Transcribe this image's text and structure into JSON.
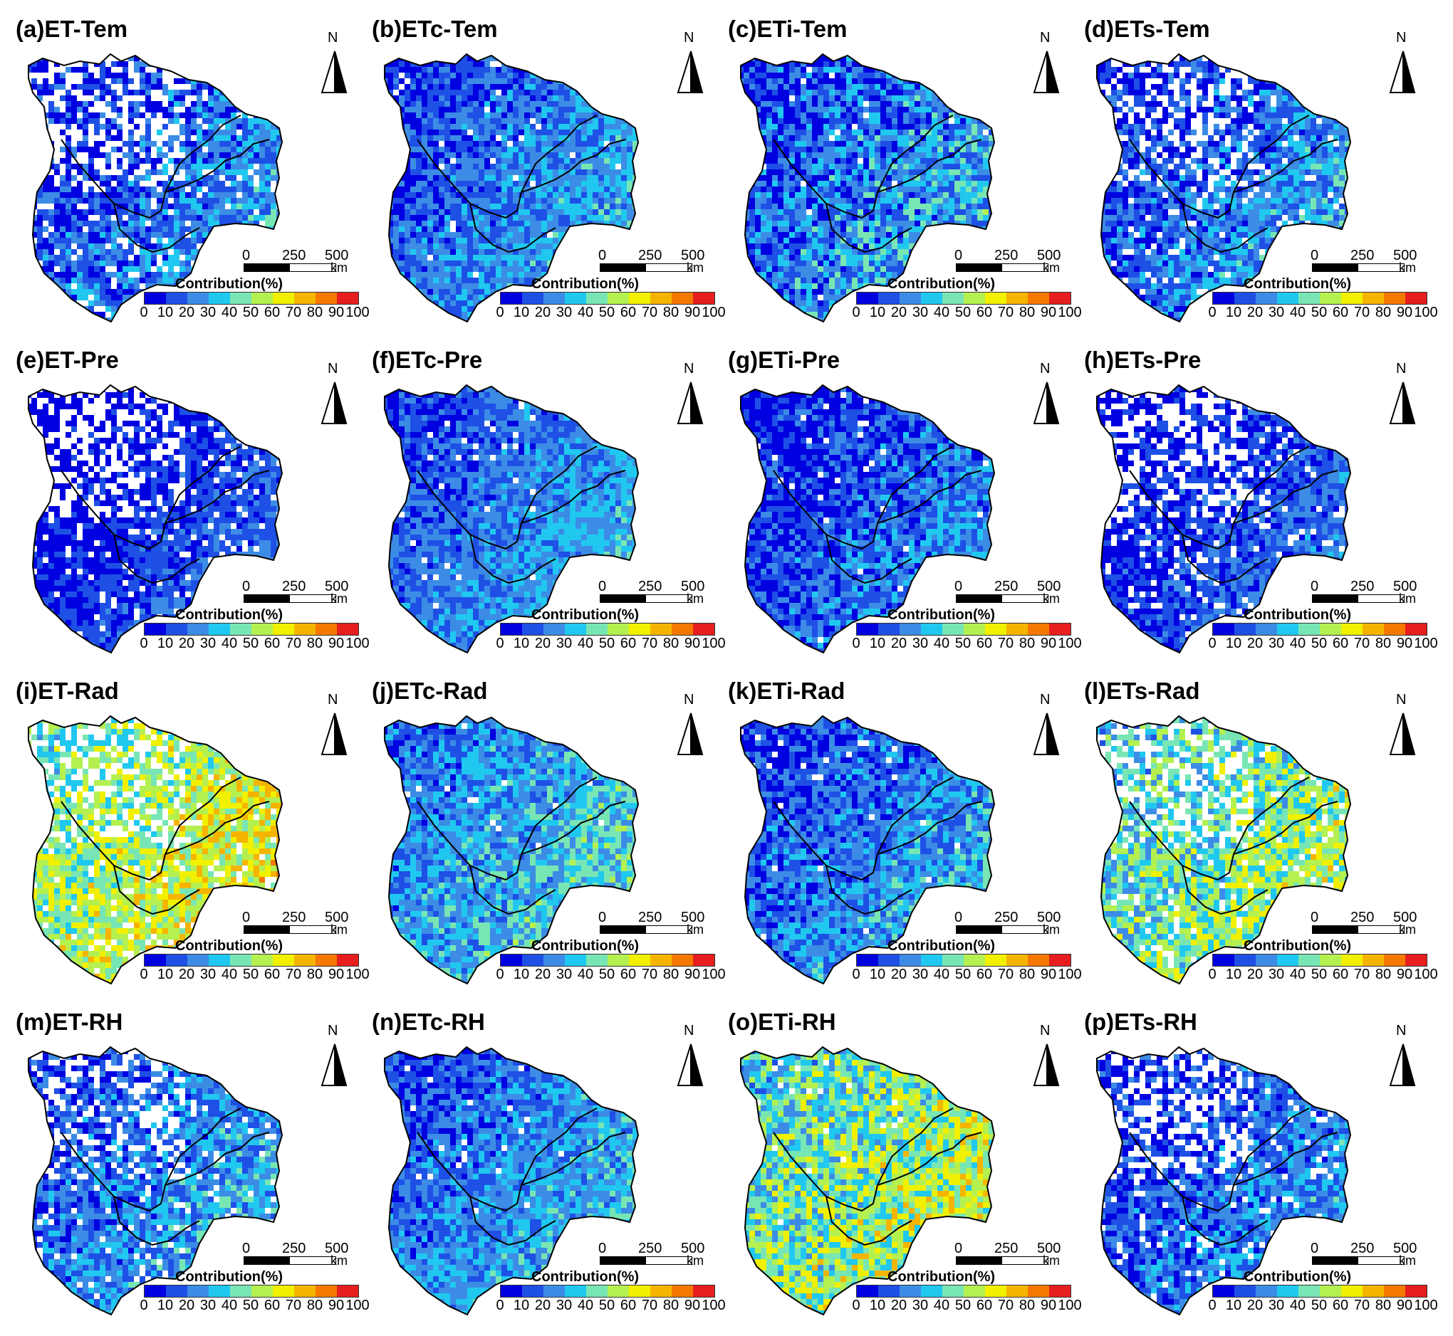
{
  "figure": {
    "colors": [
      "#0000e0",
      "#1e50e6",
      "#3c8ce6",
      "#20c8f0",
      "#78e6b4",
      "#b4f050",
      "#f0f000",
      "#f5b400",
      "#f57800",
      "#e61e1e"
    ],
    "legend_title": "Contribution(%)",
    "legend_ticks": [
      "0",
      "10",
      "20",
      "30",
      "40",
      "50",
      "60",
      "70",
      "80",
      "90",
      "100"
    ],
    "scale_labels": [
      "0",
      "250",
      "500"
    ],
    "scale_unit": "km",
    "north_label": "N",
    "panels": [
      {
        "title": "(a)ET-Tem",
        "mean": 0.18,
        "spread": 0.16,
        "white": 0.3
      },
      {
        "title": "(b)ETc-Tem",
        "mean": 0.22,
        "spread": 0.14,
        "white": 0.02
      },
      {
        "title": "(c)ETi-Tem",
        "mean": 0.22,
        "spread": 0.2,
        "white": 0.02
      },
      {
        "title": "(d)ETs-Tem",
        "mean": 0.2,
        "spread": 0.16,
        "white": 0.25
      },
      {
        "title": "(e)ET-Pre",
        "mean": 0.1,
        "spread": 0.1,
        "white": 0.3
      },
      {
        "title": "(f)ETc-Pre",
        "mean": 0.22,
        "spread": 0.12,
        "white": 0.02
      },
      {
        "title": "(g)ETi-Pre",
        "mean": 0.16,
        "spread": 0.16,
        "white": 0.02
      },
      {
        "title": "(h)ETs-Pre",
        "mean": 0.12,
        "spread": 0.12,
        "white": 0.28
      },
      {
        "title": "(i)ET-Rad",
        "mean": 0.55,
        "spread": 0.18,
        "white": 0.25
      },
      {
        "title": "(j)ETc-Rad",
        "mean": 0.3,
        "spread": 0.16,
        "white": 0.02
      },
      {
        "title": "(k)ETi-Rad",
        "mean": 0.22,
        "spread": 0.16,
        "white": 0.02
      },
      {
        "title": "(l)ETs-Rad",
        "mean": 0.45,
        "spread": 0.2,
        "white": 0.25
      },
      {
        "title": "(m)ET-RH",
        "mean": 0.22,
        "spread": 0.16,
        "white": 0.25
      },
      {
        "title": "(n)ETc-RH",
        "mean": 0.24,
        "spread": 0.14,
        "white": 0.02
      },
      {
        "title": "(o)ETi-RH",
        "mean": 0.48,
        "spread": 0.22,
        "white": 0.02
      },
      {
        "title": "(p)ETs-RH",
        "mean": 0.18,
        "spread": 0.16,
        "white": 0.25
      }
    ]
  }
}
